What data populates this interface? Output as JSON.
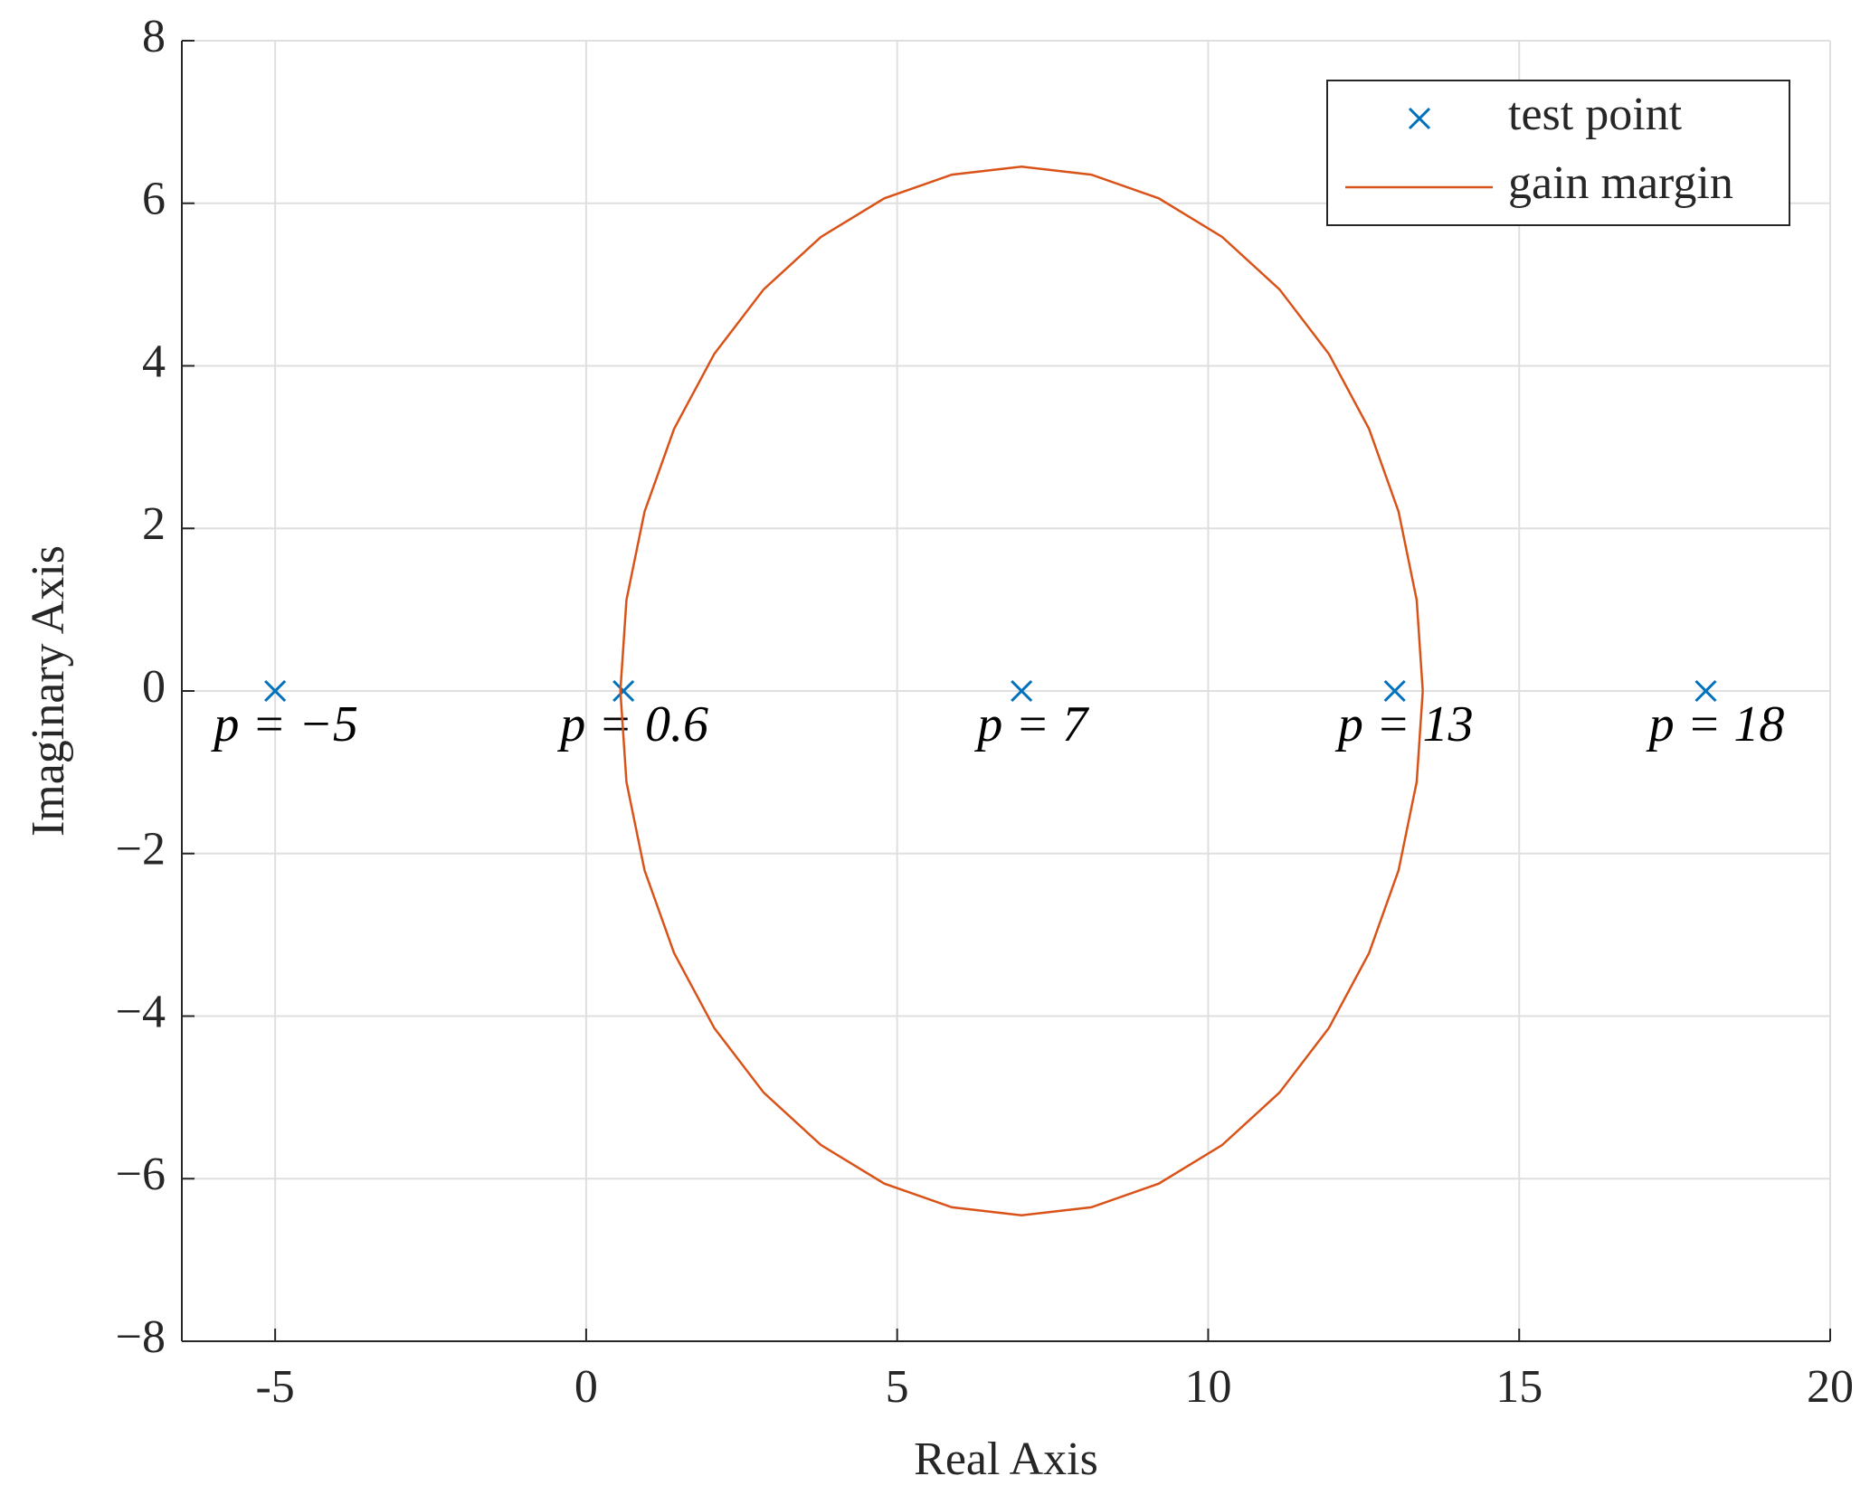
{
  "chart_data": {
    "type": "scatter",
    "xlabel": "Real Axis",
    "ylabel": "Imaginary Axis",
    "xlim": [
      -6.5,
      20
    ],
    "ylim": [
      -8,
      8
    ],
    "xticks": [
      -5,
      0,
      5,
      10,
      15,
      20
    ],
    "yticks": [
      {
        "value": -8,
        "label": "−8"
      },
      {
        "value": -6,
        "label": "−6"
      },
      {
        "value": -4,
        "label": "−4"
      },
      {
        "value": -2,
        "label": "−2"
      },
      0,
      2,
      4,
      6,
      8
    ],
    "grid": true,
    "legend": "northeast",
    "series": [
      {
        "name": "test point",
        "type": "scatter",
        "marker": "x",
        "color": "#0072bd",
        "x": [
          -5,
          0.6,
          7,
          13,
          18
        ],
        "y": [
          0,
          0,
          0,
          0,
          0
        ],
        "annotations": [
          "p = −5",
          "p = 0.6",
          "p = 7",
          "p = 13",
          "p = 18"
        ]
      },
      {
        "name": "gain margin",
        "type": "line",
        "color": "#d95319",
        "x": [
          13.45,
          13.352,
          13.061,
          12.586,
          11.941,
          11.146,
          10.225,
          9.206,
          8.12,
          7,
          5.88,
          4.794,
          3.775,
          2.854,
          2.059,
          1.414,
          0.939,
          0.648,
          0.55,
          0.648,
          0.939,
          1.414,
          2.059,
          2.854,
          3.775,
          4.794,
          5.88,
          7,
          8.12,
          9.206,
          10.225,
          11.146,
          11.941,
          12.586,
          13.061,
          13.352,
          13.45
        ],
        "y": [
          0,
          1.12,
          2.206,
          3.225,
          4.146,
          4.941,
          5.586,
          6.061,
          6.352,
          6.45,
          6.352,
          6.061,
          5.586,
          4.941,
          4.146,
          3.225,
          2.206,
          1.12,
          0,
          -1.12,
          -2.206,
          -3.225,
          -4.146,
          -4.941,
          -5.586,
          -6.061,
          -6.352,
          -6.45,
          -6.352,
          -6.061,
          -5.586,
          -4.941,
          -4.146,
          -3.225,
          -2.206,
          -1.12,
          0
        ]
      }
    ]
  }
}
